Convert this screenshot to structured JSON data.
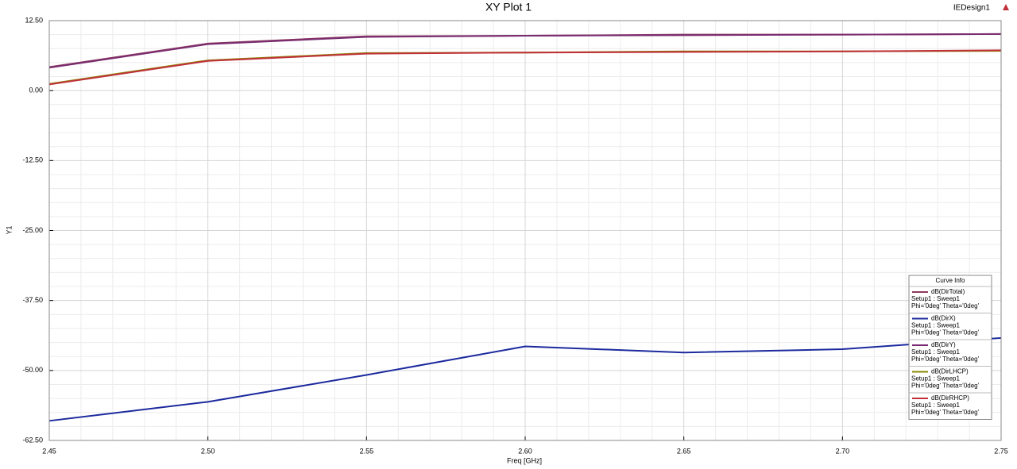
{
  "chart_data": {
    "type": "line",
    "title": "XY Plot 1",
    "design": "IEDesign1",
    "x_label": "Freq [GHz]",
    "y_label": "Y1",
    "x": [
      2.45,
      2.5,
      2.55,
      2.6,
      2.65,
      2.7,
      2.75
    ],
    "xlim": [
      2.45,
      2.75
    ],
    "xticks": [
      {
        "value": 2.45,
        "label": "2.45"
      },
      {
        "value": 2.5,
        "label": "2.50"
      },
      {
        "value": 2.55,
        "label": "2.55"
      },
      {
        "value": 2.6,
        "label": "2.60"
      },
      {
        "value": 2.65,
        "label": "2.65"
      },
      {
        "value": 2.7,
        "label": "2.70"
      },
      {
        "value": 2.75,
        "label": "2.75"
      }
    ],
    "ylim": [
      -62.5,
      12.5
    ],
    "yticks": [
      {
        "value": -62.5,
        "label": "-62.50"
      },
      {
        "value": -50,
        "label": "-50.00"
      },
      {
        "value": -37.5,
        "label": "-37.50"
      },
      {
        "value": -25,
        "label": "-25.00"
      },
      {
        "value": -12.5,
        "label": "-12.50"
      },
      {
        "value": 0,
        "label": "0.00"
      },
      {
        "value": 12.5,
        "label": "12.50"
      }
    ],
    "grid": true,
    "minor_grid": true,
    "legend_title": "Curve Info",
    "legend_position": "lower right",
    "series": [
      {
        "name": "dB(DirTotal)",
        "solution": "Setup1 : Sweep1",
        "variables": "Phi='0deg' Theta='0deg'",
        "color": "#8e3a5c",
        "values": [
          4.2,
          8.4,
          9.7,
          9.8,
          10.0,
          10.0,
          10.1
        ]
      },
      {
        "name": "dB(DirX)",
        "solution": "Setup1 : Sweep1",
        "variables": "Phi='0deg' Theta='0deg'",
        "color": "#1c2a9e",
        "values": [
          -59.0,
          -55.6,
          -50.8,
          -45.7,
          -46.8,
          -46.2,
          -44.2
        ]
      },
      {
        "name": "dB(DirY)",
        "solution": "Setup1 : Sweep1",
        "variables": "Phi='0deg' Theta='0deg'",
        "color": "#7a2c70",
        "values": [
          4.1,
          8.3,
          9.6,
          9.8,
          9.9,
          10.0,
          10.1
        ]
      },
      {
        "name": "dB(DirLHCP)",
        "solution": "Setup1 : Sweep1",
        "variables": "Phi='0deg' Theta='0deg'",
        "color": "#8a8a00",
        "values": [
          1.2,
          5.4,
          6.7,
          6.8,
          7.0,
          7.0,
          7.1
        ]
      },
      {
        "name": "dB(DirRHCP)",
        "solution": "Setup1 : Sweep1",
        "variables": "Phi='0deg' Theta='0deg'",
        "color": "#c0303a",
        "values": [
          1.1,
          5.3,
          6.6,
          6.8,
          6.9,
          7.0,
          7.2
        ]
      }
    ]
  }
}
